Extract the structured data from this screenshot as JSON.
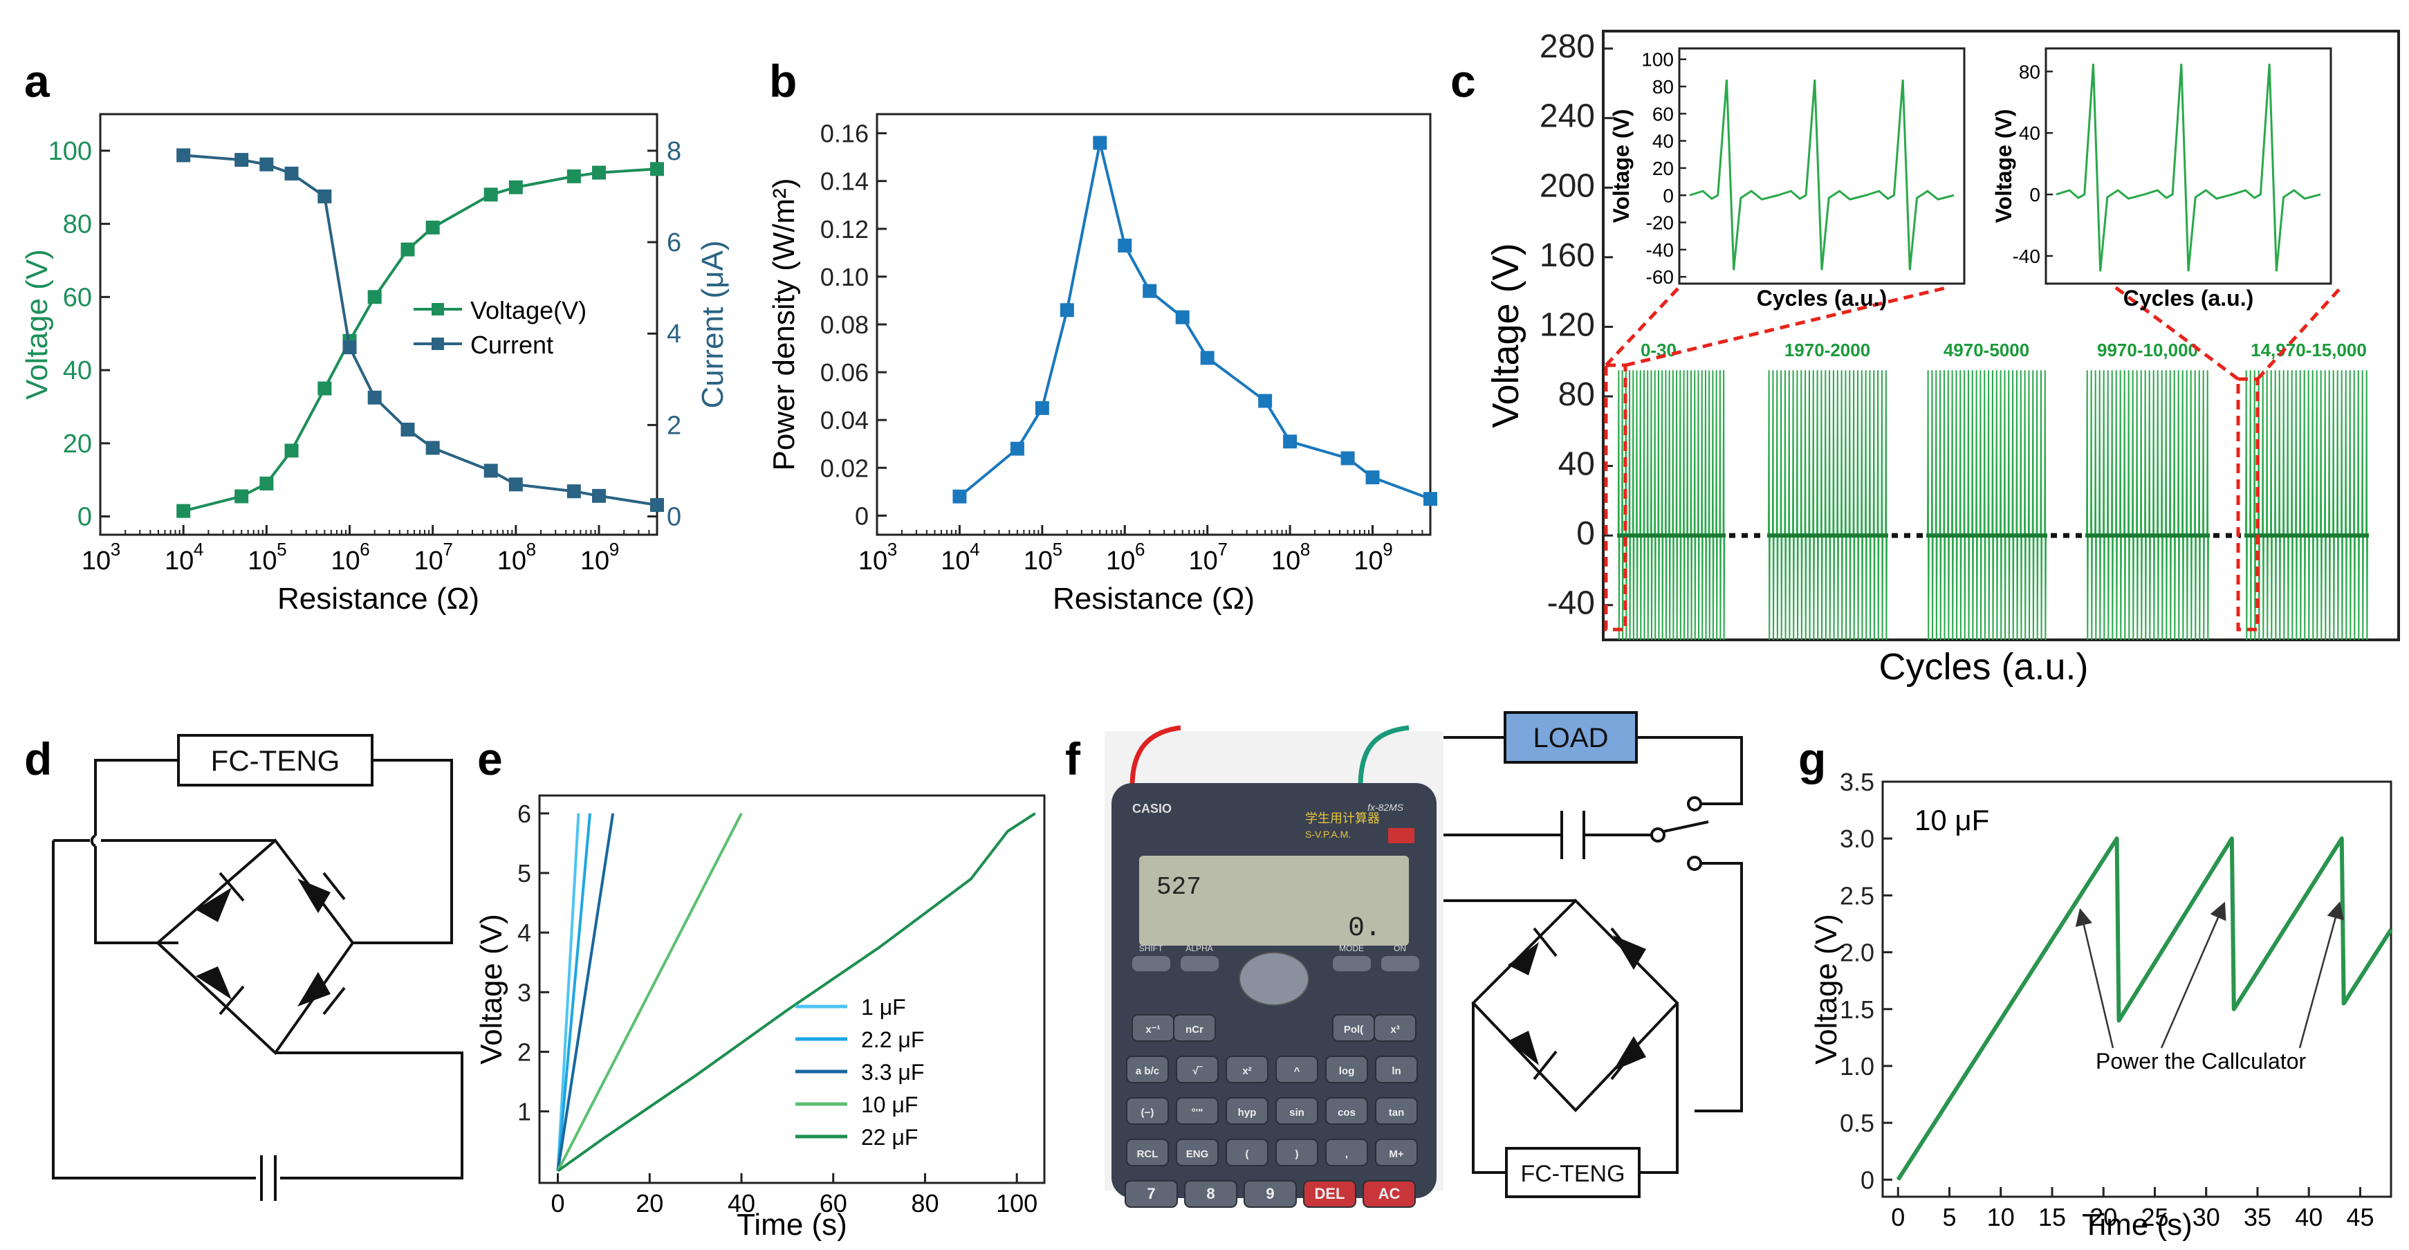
{
  "panel_labels": {
    "a": "a",
    "b": "b",
    "c": "c",
    "d": "d",
    "e": "e",
    "f": "f",
    "g": "g"
  },
  "colors": {
    "voltage": "#1d8f5a",
    "current": "#2a6383",
    "power": "#1a78bd",
    "c_trace": "#2aa84a",
    "fit_red": "#e8231a",
    "g_line": "#2a944f"
  },
  "chart_data": [
    {
      "id": "a",
      "type": "line",
      "xlabel": "Resistance (Ω)",
      "ylabel": "Voltage (V)",
      "y2label": "Current (μA)",
      "xscale": "log",
      "xlim": [
        1000,
        5000000000
      ],
      "xticks": [
        {
          "base": "10",
          "exp": "3"
        },
        {
          "base": "10",
          "exp": "4"
        },
        {
          "base": "10",
          "exp": "5"
        },
        {
          "base": "10",
          "exp": "6"
        },
        {
          "base": "10",
          "exp": "7"
        },
        {
          "base": "10",
          "exp": "8"
        },
        {
          "base": "10",
          "exp": "9"
        }
      ],
      "ylim": [
        -5,
        110
      ],
      "yticks": [
        "0",
        "20",
        "40",
        "60",
        "80",
        "100"
      ],
      "y2lim": [
        -0.4,
        8.8
      ],
      "y2ticks": [
        "0",
        "2",
        "4",
        "6",
        "8"
      ],
      "x": [
        10000,
        50000,
        100000,
        200000,
        500000,
        1000000,
        2000000,
        5000000,
        10000000,
        50000000,
        100000000,
        500000000,
        1000000000,
        5000000000
      ],
      "series": [
        {
          "name": "Voltage(V)",
          "axis": "left",
          "values": [
            1.5,
            5.5,
            9,
            18,
            35,
            48,
            60,
            73,
            79,
            88,
            90,
            93,
            94,
            95
          ]
        },
        {
          "name": "Current",
          "axis": "right",
          "values": [
            7.9,
            7.8,
            7.7,
            7.5,
            7.0,
            3.7,
            2.6,
            1.9,
            1.5,
            1.0,
            0.7,
            0.55,
            0.45,
            0.25
          ]
        }
      ],
      "legend_position": "center-right"
    },
    {
      "id": "b",
      "type": "line",
      "xlabel": "Resistance (Ω)",
      "ylabel": "Power density (W/m²)",
      "xscale": "log",
      "xlim": [
        1000,
        5000000000
      ],
      "xticks": [
        {
          "base": "10",
          "exp": "3"
        },
        {
          "base": "10",
          "exp": "4"
        },
        {
          "base": "10",
          "exp": "5"
        },
        {
          "base": "10",
          "exp": "6"
        },
        {
          "base": "10",
          "exp": "7"
        },
        {
          "base": "10",
          "exp": "8"
        },
        {
          "base": "10",
          "exp": "9"
        }
      ],
      "ylim": [
        -0.008,
        0.168
      ],
      "yticks": [
        "0",
        "0.02",
        "0.04",
        "0.06",
        "0.08",
        "0.10",
        "0.12",
        "0.14",
        "0.16"
      ],
      "x": [
        10000,
        50000,
        100000,
        200000,
        500000,
        1000000,
        2000000,
        5000000,
        10000000,
        50000000,
        100000000,
        500000000,
        1000000000,
        5000000000
      ],
      "series": [
        {
          "name": "Power density",
          "values": [
            0.008,
            0.028,
            0.045,
            0.086,
            0.156,
            0.113,
            0.094,
            0.083,
            0.066,
            0.048,
            0.031,
            0.024,
            0.016,
            0.007
          ]
        }
      ]
    },
    {
      "id": "c",
      "type": "line",
      "xlabel": "Cycles (a.u.)",
      "ylabel": "Voltage (V)",
      "ylim": [
        -60,
        290
      ],
      "yticks": [
        "-40",
        "0",
        "40",
        "80",
        "120",
        "160",
        "200",
        "240",
        "280"
      ],
      "segments": [
        "0-30",
        "1970-2000",
        "4970-5000",
        "9970-10,000",
        "14,970-15,000"
      ],
      "peak_positive_V": 95,
      "peak_negative_V": -60,
      "insets": [
        {
          "xlabel": "Cycles (a.u.)",
          "ylabel": "Voltage (V)",
          "ylim": [
            -65,
            108
          ],
          "yticks": [
            "-60",
            "-40",
            "-20",
            "0",
            "20",
            "40",
            "60",
            "80",
            "100"
          ],
          "peak_positive_V": 85,
          "peak_negative_V": -55
        },
        {
          "xlabel": "Cycles (a.u.)",
          "ylabel": "Voltage (V)",
          "ylim": [
            -58,
            95
          ],
          "yticks": [
            "-40",
            "0",
            "40",
            "80"
          ],
          "peak_positive_V": 85,
          "peak_negative_V": -50
        }
      ]
    },
    {
      "id": "e",
      "type": "line",
      "xlabel": "Time (s)",
      "ylabel": "Voltage (V)",
      "xlim": [
        -4,
        106
      ],
      "xticks": [
        "0",
        "20",
        "40",
        "60",
        "80",
        "100"
      ],
      "ylim": [
        -0.2,
        6.3
      ],
      "yticks": [
        "1",
        "2",
        "3",
        "4",
        "5",
        "6"
      ],
      "series": [
        {
          "name": "1 μF",
          "color": "#4fc4f2",
          "x": [
            0,
            4.5
          ],
          "values": [
            0,
            6
          ]
        },
        {
          "name": "2.2 μF",
          "color": "#1ea6e2",
          "x": [
            0,
            7
          ],
          "values": [
            0,
            6
          ]
        },
        {
          "name": "3.3 μF",
          "color": "#17679f",
          "x": [
            0,
            12
          ],
          "values": [
            0,
            6
          ]
        },
        {
          "name": "10 μF",
          "color": "#5cc071",
          "x": [
            0,
            40
          ],
          "values": [
            0,
            6
          ]
        },
        {
          "name": "22 μF",
          "color": "#1d8f4f",
          "x": [
            0,
            10,
            30,
            50,
            70,
            90,
            98,
            104
          ],
          "values": [
            0,
            0.55,
            1.6,
            2.7,
            3.75,
            4.9,
            5.7,
            6
          ]
        }
      ],
      "legend_position": "bottom-right"
    },
    {
      "id": "g",
      "type": "line",
      "annotation": "10 μF",
      "note": "Power the Callculator",
      "xlabel": "Time (s)",
      "ylabel": "Voltage (V)",
      "xlim": [
        -1.5,
        48
      ],
      "xticks": [
        "0",
        "5",
        "10",
        "15",
        "20",
        "25",
        "30",
        "35",
        "40",
        "45"
      ],
      "ylim": [
        -0.15,
        3.5
      ],
      "yticks": [
        "0",
        "0.5",
        "1.0",
        "1.5",
        "2.0",
        "2.5",
        "3.0",
        "3.5"
      ],
      "series": [
        {
          "name": "10 μF",
          "x": [
            0,
            21.3,
            21.5,
            32.5,
            32.7,
            43.2,
            43.4,
            48
          ],
          "values": [
            0,
            3.0,
            1.4,
            3.0,
            1.5,
            3.0,
            1.55,
            2.2
          ]
        }
      ]
    }
  ],
  "circuit_d": {
    "label": "FC-TENG"
  },
  "circuit_f": {
    "load": "LOAD",
    "source": "FC-TENG"
  },
  "photo_f": {
    "brand": "CASIO",
    "model": "fx-82MS",
    "chinese": "学生用计算器",
    "svpam": "S-V.P.A.M.",
    "display_top": "527",
    "display_result": "0.",
    "keys_row1": [
      "SHIFT",
      "ALPHA",
      "MODE",
      "ON"
    ],
    "keys_grid": [
      [
        "x⁻¹",
        "nCr",
        "Pol(",
        "x³"
      ],
      [
        "a b/c",
        "√‾",
        "x²",
        "^",
        "log",
        "ln"
      ],
      [
        "(−)",
        "°'\"",
        "hyp",
        "sin",
        "cos",
        "tan"
      ],
      [
        "RCL",
        "ENG",
        "(",
        ")",
        ",",
        "M+"
      ],
      [
        "7",
        "8",
        "9",
        "DEL",
        "AC"
      ]
    ]
  }
}
